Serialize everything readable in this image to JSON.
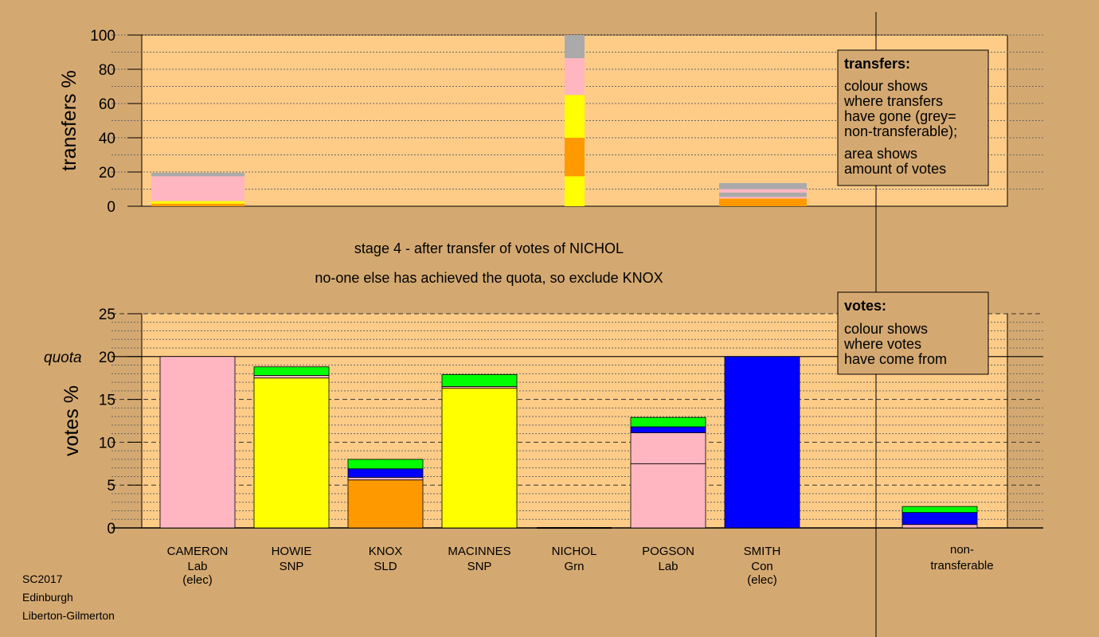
{
  "stage": {
    "line1": "stage 4 - after transfer of votes of NICHOL",
    "line2": "no-one else has achieved the quota, so exclude KNOX"
  },
  "legend_transfers": {
    "title": "transfers:",
    "lines_a": [
      "colour shows",
      "where transfers",
      "have gone (grey=",
      "non-transferable);"
    ],
    "lines_b": [
      "area shows",
      "amount of votes"
    ]
  },
  "legend_votes": {
    "title": "votes:",
    "lines": [
      "colour shows",
      "where votes",
      "have come from"
    ]
  },
  "footer": {
    "lines": [
      "SC2017",
      "Edinburgh",
      "Liberton-Gilmerton"
    ]
  },
  "colors": {
    "background": "#d4a971",
    "plot_bg": "#ffcc88",
    "Lab": "#ffb6c1",
    "SNP": "#ffff00",
    "SLD": "#ff9900",
    "Con": "#0000ff",
    "Grn": "#00ff00",
    "nontransferable": "#aaaaaa"
  },
  "chart_data": [
    {
      "type": "bar",
      "name": "transfers",
      "ylabel": "transfers %",
      "ylim": [
        0,
        100
      ],
      "yticks": [
        0,
        20,
        40,
        60,
        80,
        100
      ],
      "bars": [
        {
          "candidate": "CAMERON",
          "segments": [
            {
              "party": "SLD",
              "from": 0,
              "to": 1.5
            },
            {
              "party": "SNP",
              "from": 1.5,
              "to": 3
            },
            {
              "party": "Lab",
              "from": 3,
              "to": 17.5
            },
            {
              "party": "nontransferable",
              "from": 17.5,
              "to": 19.5
            }
          ]
        },
        {
          "candidate": "NICHOL",
          "segments": [
            {
              "party": "SNP",
              "from": 0,
              "to": 17.5
            },
            {
              "party": "SLD",
              "from": 17.5,
              "to": 40
            },
            {
              "party": "SNP",
              "from": 40,
              "to": 65
            },
            {
              "party": "Lab",
              "from": 65,
              "to": 86.5
            },
            {
              "party": "nontransferable",
              "from": 86.5,
              "to": 100
            }
          ]
        },
        {
          "candidate": "SMITH",
          "segments": [
            {
              "party": "SLD",
              "from": 0,
              "to": 4.5
            },
            {
              "party": "Lab",
              "from": 4.5,
              "to": 5.5
            },
            {
              "party": "nontransferable",
              "from": 5.5,
              "to": 8
            },
            {
              "party": "Lab",
              "from": 8,
              "to": 10
            },
            {
              "party": "nontransferable",
              "from": 10,
              "to": 13.5
            }
          ]
        }
      ]
    },
    {
      "type": "bar",
      "name": "votes",
      "ylabel": "votes %",
      "quota_label": "quota",
      "quota": 20,
      "ylim": [
        0,
        25
      ],
      "yticks": [
        0,
        5,
        10,
        15,
        20,
        25
      ],
      "candidates": [
        {
          "name": "CAMERON",
          "party": "Lab",
          "note": "(elec)",
          "segments": [
            {
              "party": "Lab",
              "from": 0,
              "to": 20
            }
          ]
        },
        {
          "name": "HOWIE",
          "party": "SNP",
          "note": "",
          "segments": [
            {
              "party": "SNP",
              "from": 0,
              "to": 17.5
            },
            {
              "party": "Lab",
              "from": 17.5,
              "to": 17.8
            },
            {
              "party": "Grn",
              "from": 17.8,
              "to": 18.8
            }
          ]
        },
        {
          "name": "KNOX",
          "party": "SLD",
          "note": "",
          "segments": [
            {
              "party": "SLD",
              "from": 0,
              "to": 5.6
            },
            {
              "party": "Lab",
              "from": 5.6,
              "to": 5.9
            },
            {
              "party": "Con",
              "from": 5.9,
              "to": 6.9
            },
            {
              "party": "Grn",
              "from": 6.9,
              "to": 8.0
            }
          ]
        },
        {
          "name": "MACINNES",
          "party": "SNP",
          "note": "",
          "segments": [
            {
              "party": "SNP",
              "from": 0,
              "to": 16.3
            },
            {
              "party": "Lab",
              "from": 16.3,
              "to": 16.5
            },
            {
              "party": "Grn",
              "from": 16.5,
              "to": 17.9
            }
          ]
        },
        {
          "name": "NICHOL",
          "party": "Grn",
          "note": "",
          "segments": []
        },
        {
          "name": "POGSON",
          "party": "Lab",
          "note": "",
          "segments": [
            {
              "party": "Lab",
              "from": 0,
              "to": 7.5
            },
            {
              "party": "Lab",
              "from": 7.5,
              "to": 11.1
            },
            {
              "party": "Con",
              "from": 11.1,
              "to": 11.8
            },
            {
              "party": "Grn",
              "from": 11.8,
              "to": 12.9
            }
          ]
        },
        {
          "name": "SMITH",
          "party": "Con",
          "note": "(elec)",
          "segments": [
            {
              "party": "Con",
              "from": 0,
              "to": 20
            }
          ]
        }
      ],
      "nontransferable": {
        "label_1": "non-",
        "label_2": "transferable",
        "segments": [
          {
            "party": "Lab",
            "from": 0,
            "to": 0.4
          },
          {
            "party": "Con",
            "from": 0.4,
            "to": 1.8
          },
          {
            "party": "Grn",
            "from": 1.8,
            "to": 2.5
          }
        ]
      }
    }
  ]
}
